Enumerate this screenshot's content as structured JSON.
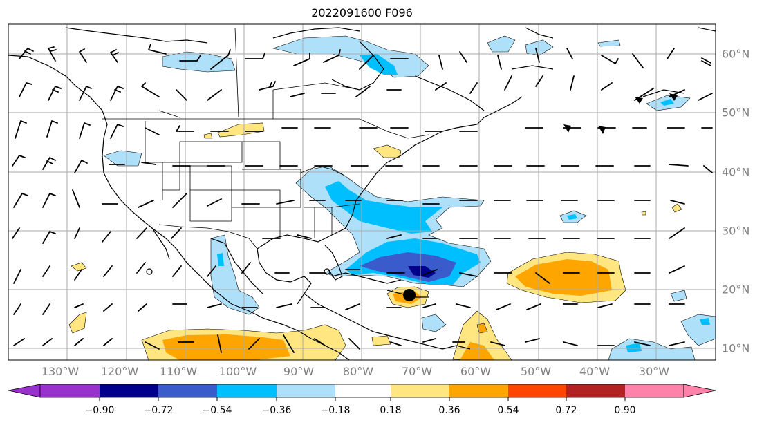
{
  "title": "2022091600 F096",
  "lon_labels": [
    "130°W",
    "120°W",
    "110°W",
    "100°W",
    "90°W",
    "80°W",
    "70°W",
    "60°W",
    "50°W",
    "40°W",
    "30°W"
  ],
  "lat_labels": [
    "60°N",
    "50°N",
    "40°N",
    "30°N",
    "20°N",
    "10°N"
  ],
  "colorbar": {
    "ticks": [
      "−0.90",
      "−0.72",
      "−0.54",
      "−0.36",
      "−0.18",
      "0.18",
      "0.36",
      "0.54",
      "0.72",
      "0.90"
    ],
    "colors": [
      "#9932CC",
      "#00008B",
      "#3A5BCC",
      "#00BFFF",
      "#AEE0FA",
      "#FFFFFF",
      "#FFE680",
      "#FFA500",
      "#FF4500",
      "#B22222",
      "#FF82AB"
    ]
  },
  "legend_colors": {
    "neg_light": "#AEE0FA",
    "neg_mid": "#00BFFF",
    "neg_strong": "#3A5BCC",
    "neg_darkest": "#00008B",
    "pos_light": "#FFE680",
    "pos_mid": "#FFA500"
  }
}
